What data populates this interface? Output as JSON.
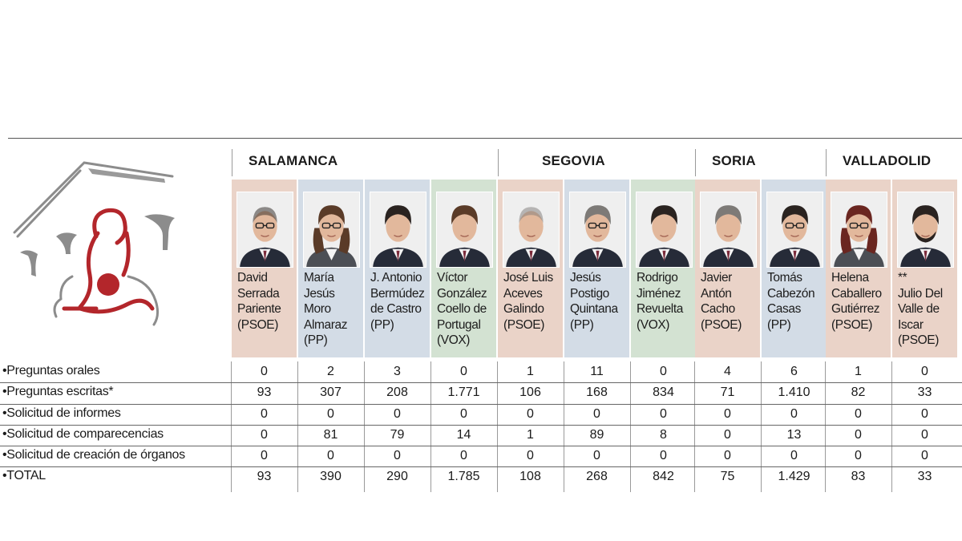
{
  "regions": [
    {
      "name": "SALAMANCA",
      "span": [
        0,
        3
      ]
    },
    {
      "name": "SEGOVIA",
      "span": [
        4,
        6
      ]
    },
    {
      "name": "SORIA",
      "span": [
        7,
        8
      ]
    },
    {
      "name": "VALLADOLID",
      "span": [
        9,
        10
      ]
    }
  ],
  "party_colors": {
    "PSOE": "#ead3c8",
    "PP": "#d3dce6",
    "VOX": "#d3e2d2"
  },
  "deputies": [
    {
      "lines": [
        "David",
        "Serrada",
        "Pariente",
        "(PSOE)"
      ],
      "party": "PSOE",
      "hair": "dark",
      "bald": true,
      "glasses": true,
      "gender": "m"
    },
    {
      "lines": [
        "María",
        "Jesús",
        "Moro",
        "Almaraz",
        "(PP)"
      ],
      "party": "PP",
      "hair": "brown",
      "bald": false,
      "glasses": true,
      "gender": "f"
    },
    {
      "lines": [
        "J. Antonio",
        "Bermúdez",
        "de Castro",
        "(PP)"
      ],
      "party": "PP",
      "hair": "dark",
      "bald": false,
      "glasses": false,
      "gender": "m"
    },
    {
      "lines": [
        "Víctor",
        "González",
        "Coello de",
        "Portugal",
        "(VOX)"
      ],
      "party": "VOX",
      "hair": "brown",
      "bald": false,
      "glasses": false,
      "gender": "m"
    },
    {
      "lines": [
        "José Luis",
        "Aceves",
        "Galindo",
        "(PSOE)"
      ],
      "party": "PSOE",
      "hair": "grey",
      "bald": true,
      "glasses": false,
      "gender": "m"
    },
    {
      "lines": [
        "Jesús",
        "Postigo",
        "Quintana",
        "(PP)"
      ],
      "party": "PP",
      "hair": "grey",
      "bald": false,
      "glasses": true,
      "gender": "m"
    },
    {
      "lines": [
        "Rodrigo",
        "Jiménez",
        "Revuelta",
        "(VOX)"
      ],
      "party": "VOX",
      "hair": "dark",
      "bald": false,
      "glasses": false,
      "gender": "m"
    },
    {
      "lines": [
        "Javier",
        "Antón",
        "Cacho",
        "(PSOE)"
      ],
      "party": "PSOE",
      "hair": "grey",
      "bald": false,
      "glasses": false,
      "gender": "m"
    },
    {
      "lines": [
        "Tomás",
        "Cabezón",
        "Casas",
        "(PP)"
      ],
      "party": "PP",
      "hair": "dark",
      "bald": false,
      "glasses": true,
      "gender": "m"
    },
    {
      "lines": [
        "Helena",
        "Caballero",
        "Gutiérrez",
        "(PSOE)"
      ],
      "party": "PSOE",
      "hair": "red",
      "bald": false,
      "glasses": true,
      "gender": "f"
    },
    {
      "lines": [
        "**",
        "Julio Del",
        "Valle de",
        "Iscar",
        "(PSOE)"
      ],
      "party": "PSOE",
      "hair": "dark",
      "bald": false,
      "glasses": false,
      "gender": "m",
      "beard": true
    }
  ],
  "rows": [
    {
      "label": "•Preguntas orales",
      "values": [
        "0",
        "2",
        "3",
        "0",
        "1",
        "11",
        "0",
        "4",
        "6",
        "1",
        "0"
      ]
    },
    {
      "label": "•Preguntas escritas*",
      "values": [
        "93",
        "307",
        "208",
        "1.771",
        "106",
        "168",
        "834",
        "71",
        "1.410",
        "82",
        "33"
      ]
    },
    {
      "label": "•Solicitud de informes",
      "values": [
        "0",
        "0",
        "0",
        "0",
        "0",
        "0",
        "0",
        "0",
        "0",
        "0",
        "0"
      ]
    },
    {
      "label": "•Solicitud de comparecencias",
      "values": [
        "0",
        "81",
        "79",
        "14",
        "1",
        "89",
        "8",
        "0",
        "13",
        "0",
        "0"
      ]
    },
    {
      "label": "•Solicitud de creación de órganos",
      "values": [
        "0",
        "0",
        "0",
        "0",
        "0",
        "0",
        "0",
        "0",
        "0",
        "0",
        "0"
      ]
    },
    {
      "label": "•TOTAL",
      "values": [
        "93",
        "390",
        "290",
        "1.785",
        "108",
        "268",
        "842",
        "75",
        "1.429",
        "83",
        "33"
      ]
    }
  ],
  "colors": {
    "logo_red": "#b3262b",
    "logo_grey": "#8c8c8c",
    "rule": "#555555"
  },
  "icons": {
    "logo": "parliament-lion-logo"
  }
}
